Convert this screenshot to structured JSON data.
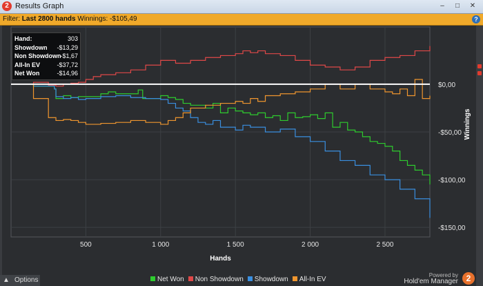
{
  "window": {
    "title": "Results Graph",
    "app_icon": "2"
  },
  "filter": {
    "label": "Filter:",
    "hands": "Last 2800 hands",
    "winnings": "Winnings: -$105,49"
  },
  "tooltip": {
    "rows": [
      {
        "label": "Hand:",
        "value": "303"
      },
      {
        "label": "Showdown",
        "value": "-$13,29"
      },
      {
        "label": "Non Showdown",
        "value": "-$1,67"
      },
      {
        "label": "All-In EV",
        "value": "-$37,72"
      },
      {
        "label": "Net Won",
        "value": "-$14,96"
      }
    ]
  },
  "footer": {
    "options_label": "Options",
    "powered_by": "Powered by",
    "brand": "Hold'em Manager",
    "brand_logo": "2"
  },
  "colors": {
    "net_won": "#2ecc2e",
    "non_showdown": "#e04848",
    "showdown": "#3a8fe0",
    "all_in_ev": "#f0962e",
    "zero_line": "#ffffff",
    "background": "#2b2d30"
  },
  "chart_data": {
    "type": "line",
    "xlabel": "Hands",
    "ylabel": "Winnings",
    "xlim": [
      0,
      2800
    ],
    "ylim": [
      -160,
      60
    ],
    "x_ticks": [
      {
        "value": 500,
        "label": "500"
      },
      {
        "value": 1000,
        "label": "1 000"
      },
      {
        "value": 1500,
        "label": "1 500"
      },
      {
        "value": 2000,
        "label": "2 000"
      },
      {
        "value": 2500,
        "label": "2 500"
      }
    ],
    "y_ticks": [
      {
        "value": 0,
        "label": "$0,00"
      },
      {
        "value": -50,
        "label": "-$50,00"
      },
      {
        "value": -100,
        "label": "-$100,00"
      },
      {
        "value": -150,
        "label": "-$150,00"
      }
    ],
    "series": [
      {
        "name": "Net Won",
        "color": "#2ecc2e",
        "x": [
          0,
          150,
          290,
          300,
          350,
          400,
          450,
          600,
          650,
          700,
          850,
          880,
          1000,
          1050,
          1100,
          1150,
          1200,
          1300,
          1350,
          1400,
          1450,
          1500,
          1550,
          1600,
          1650,
          1700,
          1750,
          1800,
          1850,
          1900,
          1950,
          2000,
          2050,
          2100,
          2150,
          2200,
          2250,
          2300,
          2350,
          2400,
          2450,
          2500,
          2550,
          2600,
          2650,
          2700,
          2750,
          2800
        ],
        "values": [
          0,
          -2,
          -5,
          -15,
          -12,
          -14,
          -13,
          -10,
          -8,
          -10,
          -6,
          -15,
          -12,
          -14,
          -16,
          -20,
          -22,
          -25,
          -20,
          -30,
          -25,
          -28,
          -30,
          -32,
          -30,
          -35,
          -33,
          -38,
          -30,
          -35,
          -34,
          -32,
          -36,
          -30,
          -45,
          -40,
          -48,
          -50,
          -55,
          -60,
          -62,
          -65,
          -70,
          -80,
          -85,
          -90,
          -95,
          -105
        ]
      },
      {
        "name": "Non Showdown",
        "color": "#e04848",
        "x": [
          0,
          150,
          250,
          300,
          350,
          400,
          450,
          500,
          550,
          600,
          700,
          800,
          900,
          1000,
          1100,
          1200,
          1300,
          1400,
          1500,
          1550,
          1600,
          1650,
          1700,
          1800,
          1900,
          2000,
          2100,
          2200,
          2300,
          2400,
          2500,
          2600,
          2700,
          2800
        ],
        "values": [
          0,
          2,
          -1,
          -2,
          0,
          1,
          2,
          5,
          8,
          10,
          12,
          15,
          20,
          25,
          22,
          25,
          28,
          30,
          32,
          35,
          33,
          35,
          32,
          30,
          25,
          20,
          18,
          15,
          18,
          25,
          28,
          30,
          35,
          40
        ]
      },
      {
        "name": "Showdown",
        "color": "#3a8fe0",
        "x": [
          0,
          150,
          290,
          300,
          350,
          400,
          450,
          500,
          600,
          700,
          800,
          900,
          1000,
          1050,
          1100,
          1150,
          1200,
          1250,
          1300,
          1350,
          1400,
          1500,
          1550,
          1600,
          1700,
          1800,
          1900,
          2000,
          2100,
          2200,
          2300,
          2400,
          2500,
          2600,
          2700,
          2800
        ],
        "values": [
          0,
          -2,
          -5,
          -13,
          -15,
          -14,
          -16,
          -15,
          -13,
          -12,
          -14,
          -15,
          -16,
          -20,
          -25,
          -28,
          -35,
          -40,
          -42,
          -38,
          -45,
          -48,
          -43,
          -45,
          -50,
          -47,
          -55,
          -60,
          -70,
          -80,
          -85,
          -95,
          -100,
          -110,
          -120,
          -140
        ]
      },
      {
        "name": "All-In EV",
        "color": "#f0962e",
        "x": [
          0,
          150,
          250,
          300,
          350,
          400,
          450,
          500,
          600,
          700,
          800,
          900,
          1000,
          1050,
          1100,
          1150,
          1200,
          1300,
          1400,
          1500,
          1550,
          1600,
          1650,
          1700,
          1800,
          1900,
          2000,
          2100,
          2200,
          2300,
          2400,
          2500,
          2550,
          2600,
          2650,
          2700,
          2750,
          2800
        ],
        "values": [
          0,
          -15,
          -35,
          -38,
          -37,
          -38,
          -40,
          -42,
          -41,
          -40,
          -38,
          -40,
          -42,
          -38,
          -35,
          -30,
          -25,
          -22,
          -20,
          -18,
          -20,
          -15,
          -18,
          -12,
          -10,
          -8,
          -5,
          0,
          -5,
          0,
          -5,
          -8,
          -10,
          -5,
          -12,
          5,
          -15,
          -12
        ]
      }
    ]
  }
}
